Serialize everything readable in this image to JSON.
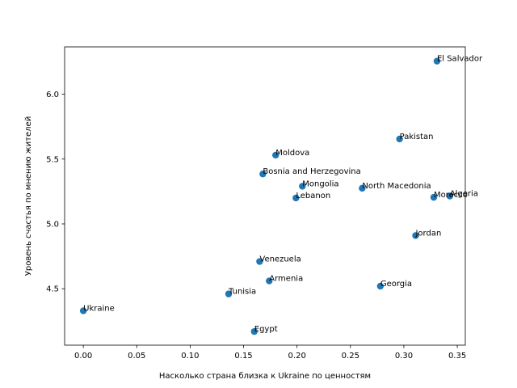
{
  "chart_data": {
    "type": "scatter",
    "title": "",
    "xlabel": "Насколько страна близка к Ukraine по ценностям",
    "ylabel": "Уровень счастья по мнению жителей",
    "xlim": [
      -0.0175,
      0.3575
    ],
    "ylim": [
      4.065,
      6.365
    ],
    "xticks": [
      0.0,
      0.05,
      0.1,
      0.15,
      0.2,
      0.25,
      0.3,
      0.35
    ],
    "xtick_labels": [
      "0.00",
      "0.05",
      "0.10",
      "0.15",
      "0.20",
      "0.25",
      "0.30",
      "0.35"
    ],
    "yticks": [
      4.5,
      5.0,
      5.5,
      6.0
    ],
    "ytick_labels": [
      "4.5",
      "5.0",
      "5.5",
      "6.0"
    ],
    "grid": false,
    "legend": "none",
    "marker_color": "#1f77b4",
    "points": [
      {
        "label": "El Salvador",
        "x": 0.331,
        "y": 6.255
      },
      {
        "label": "Pakistan",
        "x": 0.296,
        "y": 5.655
      },
      {
        "label": "Moldova",
        "x": 0.18,
        "y": 5.53
      },
      {
        "label": "Bosnia and Herzegovina",
        "x": 0.168,
        "y": 5.385
      },
      {
        "label": "Mongolia",
        "x": 0.205,
        "y": 5.29
      },
      {
        "label": "North Macedonia",
        "x": 0.261,
        "y": 5.275
      },
      {
        "label": "Lebanon",
        "x": 0.199,
        "y": 5.2
      },
      {
        "label": "Morocco",
        "x": 0.328,
        "y": 5.205
      },
      {
        "label": "Algeria",
        "x": 0.343,
        "y": 5.215
      },
      {
        "label": "Jordan",
        "x": 0.311,
        "y": 4.91
      },
      {
        "label": "Venezuela",
        "x": 0.165,
        "y": 4.71
      },
      {
        "label": "Armenia",
        "x": 0.174,
        "y": 4.56
      },
      {
        "label": "Georgia",
        "x": 0.278,
        "y": 4.52
      },
      {
        "label": "Tunisia",
        "x": 0.136,
        "y": 4.46
      },
      {
        "label": "Ukraine",
        "x": 0.0,
        "y": 4.33
      },
      {
        "label": "Egypt",
        "x": 0.16,
        "y": 4.17
      }
    ]
  }
}
